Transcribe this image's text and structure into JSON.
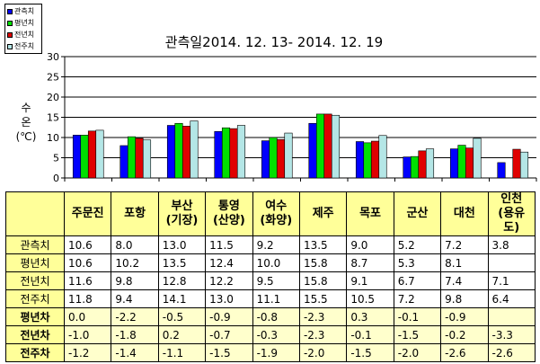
{
  "chart_data": {
    "type": "bar",
    "title": "관측일2014. 12. 13-  2014. 12. 19",
    "ylabel_lines": [
      "수",
      "온",
      "(℃)"
    ],
    "categories": [
      "주문진",
      "포항",
      "부산\n(기장)",
      "통영\n(산양)",
      "여수\n(화양)",
      "제주",
      "목포",
      "군산",
      "대천",
      "인천\n(용유도)"
    ],
    "ylim": [
      0,
      30
    ],
    "yticks": [
      0,
      5,
      10,
      15,
      20,
      25,
      30
    ],
    "grid": true,
    "legend_position": "top-left",
    "series": [
      {
        "name": "관측치",
        "color": "#0000ff",
        "values": [
          10.6,
          8.0,
          13.0,
          11.5,
          9.2,
          13.5,
          9.0,
          5.2,
          7.2,
          3.8
        ]
      },
      {
        "name": "평년치",
        "color": "#00e000",
        "values": [
          10.6,
          10.2,
          13.5,
          12.4,
          10.0,
          15.8,
          8.7,
          5.3,
          8.1,
          null
        ]
      },
      {
        "name": "전년치",
        "color": "#e00000",
        "values": [
          11.6,
          9.8,
          12.8,
          12.2,
          9.5,
          15.8,
          9.1,
          6.7,
          7.4,
          7.1
        ]
      },
      {
        "name": "전주치",
        "color": "#b4e6e6",
        "values": [
          11.8,
          9.4,
          14.1,
          13.0,
          11.1,
          15.5,
          10.5,
          7.2,
          9.8,
          6.4
        ]
      }
    ]
  },
  "table": {
    "headers": [
      "주문진",
      "포항",
      "부산\n(기장)",
      "통영\n(산양)",
      "여수\n(화양)",
      "제주",
      "목포",
      "군산",
      "대천",
      "인천\n(용유도)"
    ],
    "rows": [
      {
        "label": "관측치",
        "bold": false,
        "diff": false,
        "values": [
          "10.6",
          "8.0",
          "13.0",
          "11.5",
          "9.2",
          "13.5",
          "9.0",
          "5.2",
          "7.2",
          "3.8"
        ]
      },
      {
        "label": "평년치",
        "bold": false,
        "diff": false,
        "values": [
          "10.6",
          "10.2",
          "13.5",
          "12.4",
          "10.0",
          "15.8",
          "8.7",
          "5.3",
          "8.1",
          ""
        ]
      },
      {
        "label": "전년치",
        "bold": false,
        "diff": false,
        "values": [
          "11.6",
          "9.8",
          "12.8",
          "12.2",
          "9.5",
          "15.8",
          "9.1",
          "6.7",
          "7.4",
          "7.1"
        ]
      },
      {
        "label": "전주치",
        "bold": false,
        "diff": false,
        "values": [
          "11.8",
          "9.4",
          "14.1",
          "13.0",
          "11.1",
          "15.5",
          "10.5",
          "7.2",
          "9.8",
          "6.4"
        ]
      },
      {
        "label": "평년차",
        "bold": true,
        "diff": true,
        "values": [
          "0.0",
          "-2.2",
          "-0.5",
          "-0.9",
          "-0.8",
          "-2.3",
          "0.3",
          "-0.1",
          "-0.9",
          ""
        ]
      },
      {
        "label": "전년차",
        "bold": true,
        "diff": true,
        "values": [
          "-1.0",
          "-1.8",
          "0.2",
          "-0.7",
          "-0.3",
          "-2.3",
          "-0.1",
          "-1.5",
          "-0.2",
          "-3.3"
        ]
      },
      {
        "label": "전주차",
        "bold": true,
        "diff": true,
        "values": [
          "-1.2",
          "-1.4",
          "-1.1",
          "-1.5",
          "-1.9",
          "-2.0",
          "-1.5",
          "-2.0",
          "-2.6",
          "-2.6"
        ]
      }
    ]
  }
}
